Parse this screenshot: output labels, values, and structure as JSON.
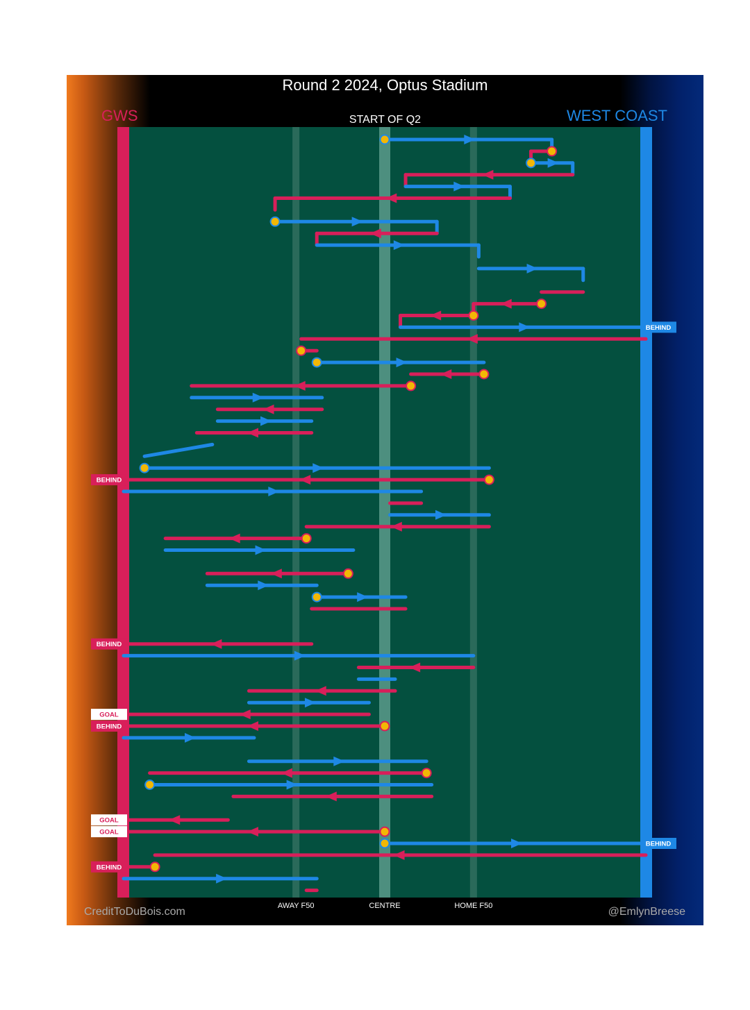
{
  "header": {
    "title": "Round 2 2024, Optus Stadium",
    "home_team": "GWS",
    "away_team": "WEST COAST",
    "period_label": "START OF Q2"
  },
  "footer": {
    "credit_left": "CreditToDuBois.com",
    "credit_right": "@EmlynBreese"
  },
  "colors": {
    "home": "#d81f5a",
    "away": "#1e88e5",
    "field": "#04503f",
    "stoppage": "#f2b705"
  },
  "chart_data": {
    "type": "line",
    "description_units": "x = field position from GWS goal (0) to West Coast goal (100); y = chain sequence index",
    "x_ticks": [
      {
        "value": 33,
        "label": "AWAY F50"
      },
      {
        "value": 50,
        "label": "CENTRE"
      },
      {
        "value": 67,
        "label": "HOME F50"
      }
    ],
    "xlim": [
      0,
      100
    ],
    "segments": [
      {
        "team": "away",
        "x0": 50,
        "x1": 82,
        "y0": 0,
        "y1": 0,
        "start": "stoppage",
        "arrow": true
      },
      {
        "team": "away",
        "x0": 82,
        "x1": 82,
        "y0": 0,
        "y1": 1
      },
      {
        "team": "home",
        "x0": 82,
        "x1": 78,
        "y0": 1,
        "y1": 1,
        "start": "stoppage",
        "arrow": false
      },
      {
        "team": "home",
        "x0": 78,
        "x1": 78,
        "y0": 1,
        "y1": 2
      },
      {
        "team": "away",
        "x0": 78,
        "x1": 86,
        "y0": 2,
        "y1": 2,
        "start": "stoppage",
        "arrow": true
      },
      {
        "team": "away",
        "x0": 86,
        "x1": 86,
        "y0": 2,
        "y1": 3
      },
      {
        "team": "home",
        "x0": 86,
        "x1": 54,
        "y0": 3,
        "y1": 3,
        "arrow": true
      },
      {
        "team": "home",
        "x0": 54,
        "x1": 54,
        "y0": 3,
        "y1": 4
      },
      {
        "team": "away",
        "x0": 54,
        "x1": 74,
        "y0": 4,
        "y1": 4,
        "arrow": true
      },
      {
        "team": "away",
        "x0": 74,
        "x1": 74,
        "y0": 4,
        "y1": 5
      },
      {
        "team": "home",
        "x0": 74,
        "x1": 29,
        "y0": 5,
        "y1": 5,
        "arrow": true
      },
      {
        "team": "home",
        "x0": 29,
        "x1": 29,
        "y0": 5,
        "y1": 6
      },
      {
        "team": "away",
        "x0": 29,
        "x1": 60,
        "y0": 7,
        "y1": 7,
        "start": "stoppage",
        "arrow": true
      },
      {
        "team": "away",
        "x0": 60,
        "x1": 60,
        "y0": 7,
        "y1": 8
      },
      {
        "team": "home",
        "x0": 60,
        "x1": 37,
        "y0": 8,
        "y1": 8,
        "arrow": true
      },
      {
        "team": "home",
        "x0": 37,
        "x1": 37,
        "y0": 8,
        "y1": 9
      },
      {
        "team": "away",
        "x0": 37,
        "x1": 68,
        "y0": 9,
        "y1": 9,
        "arrow": true
      },
      {
        "team": "away",
        "x0": 68,
        "x1": 68,
        "y0": 9,
        "y1": 10
      },
      {
        "team": "away",
        "x0": 68,
        "x1": 88,
        "y0": 11,
        "y1": 11,
        "arrow": true
      },
      {
        "team": "away",
        "x0": 88,
        "x1": 88,
        "y0": 11,
        "y1": 12
      },
      {
        "team": "home",
        "x0": 88,
        "x1": 80,
        "y0": 13,
        "y1": 13
      },
      {
        "team": "home",
        "x0": 80,
        "x1": 67,
        "y0": 14,
        "y1": 14,
        "start": "stoppage",
        "arrow": true
      },
      {
        "team": "home",
        "x0": 67,
        "x1": 67,
        "y0": 14,
        "y1": 15
      },
      {
        "team": "home",
        "x0": 67,
        "x1": 53,
        "y0": 15,
        "y1": 15,
        "start": "stoppage",
        "arrow": true
      },
      {
        "team": "home",
        "x0": 53,
        "x1": 53,
        "y0": 15,
        "y1": 16
      },
      {
        "team": "away",
        "x0": 53,
        "x1": 100,
        "y0": 16,
        "y1": 16,
        "arrow": true,
        "outcome": "BEHIND"
      },
      {
        "team": "home",
        "x0": 100,
        "x1": 34,
        "y0": 17,
        "y1": 17,
        "arrow": true
      },
      {
        "team": "home",
        "x0": 34,
        "x1": 37,
        "y0": 18,
        "y1": 18,
        "start": "stoppage"
      },
      {
        "team": "away",
        "x0": 37,
        "x1": 69,
        "y0": 19,
        "y1": 19,
        "start": "stoppage",
        "arrow": true
      },
      {
        "team": "home",
        "x0": 69,
        "x1": 55,
        "y0": 20,
        "y1": 20,
        "start": "stoppage",
        "arrow": true
      },
      {
        "team": "home",
        "x0": 55,
        "x1": 13,
        "y0": 21,
        "y1": 21,
        "start": "stoppage",
        "arrow": true
      },
      {
        "team": "away",
        "x0": 13,
        "x1": 38,
        "y0": 22,
        "y1": 22,
        "arrow": true
      },
      {
        "team": "home",
        "x0": 38,
        "x1": 18,
        "y0": 23,
        "y1": 23,
        "arrow": true
      },
      {
        "team": "away",
        "x0": 18,
        "x1": 36,
        "y0": 24,
        "y1": 24,
        "arrow": true
      },
      {
        "team": "home",
        "x0": 36,
        "x1": 14,
        "y0": 25,
        "y1": 25,
        "arrow": true
      },
      {
        "team": "away",
        "x0": 17,
        "x1": 4,
        "y0": 26,
        "y1": 27,
        "arrow": true
      },
      {
        "team": "away",
        "x0": 4,
        "x1": 70,
        "y0": 28,
        "y1": 28,
        "start": "stoppage",
        "arrow": true
      },
      {
        "team": "home",
        "x0": 70,
        "x1": 0,
        "y0": 29,
        "y1": 29,
        "start": "stoppage",
        "arrow": true,
        "outcome": "BEHIND"
      },
      {
        "team": "away",
        "x0": 0,
        "x1": 57,
        "y0": 30,
        "y1": 30,
        "arrow": true
      },
      {
        "team": "home",
        "x0": 57,
        "x1": 51,
        "y0": 31,
        "y1": 31
      },
      {
        "team": "away",
        "x0": 51,
        "x1": 70,
        "y0": 32,
        "y1": 32,
        "arrow": true
      },
      {
        "team": "home",
        "x0": 70,
        "x1": 35,
        "y0": 33,
        "y1": 33,
        "arrow": true
      },
      {
        "team": "home",
        "x0": 35,
        "x1": 8,
        "y0": 34,
        "y1": 34,
        "start": "stoppage",
        "arrow": true
      },
      {
        "team": "away",
        "x0": 8,
        "x1": 44,
        "y0": 35,
        "y1": 35,
        "arrow": true
      },
      {
        "team": "home",
        "x0": 43,
        "x1": 16,
        "y0": 37,
        "y1": 37,
        "start": "stoppage",
        "arrow": true
      },
      {
        "team": "away",
        "x0": 16,
        "x1": 37,
        "y0": 38,
        "y1": 38,
        "arrow": true
      },
      {
        "team": "away",
        "x0": 37,
        "x1": 54,
        "y0": 39,
        "y1": 39,
        "start": "stoppage",
        "arrow": true
      },
      {
        "team": "home",
        "x0": 54,
        "x1": 36,
        "y0": 40,
        "y1": 40
      },
      {
        "team": "home",
        "x0": 36,
        "x1": 0,
        "y0": 43,
        "y1": 43,
        "arrow": true,
        "outcome": "BEHIND"
      },
      {
        "team": "away",
        "x0": 0,
        "x1": 67,
        "y0": 44,
        "y1": 44,
        "arrow": true
      },
      {
        "team": "home",
        "x0": 67,
        "x1": 45,
        "y0": 45,
        "y1": 45,
        "arrow": true
      },
      {
        "team": "away",
        "x0": 45,
        "x1": 52,
        "y0": 46,
        "y1": 46
      },
      {
        "team": "home",
        "x0": 52,
        "x1": 24,
        "y0": 47,
        "y1": 47,
        "arrow": true
      },
      {
        "team": "away",
        "x0": 24,
        "x1": 47,
        "y0": 48,
        "y1": 48,
        "arrow": true
      },
      {
        "team": "home",
        "x0": 47,
        "x1": 0,
        "y0": 49,
        "y1": 49,
        "arrow": true,
        "outcome": "GOAL"
      },
      {
        "team": "home",
        "x0": 50,
        "x1": 0,
        "y0": 50,
        "y1": 50,
        "start": "stoppage",
        "arrow": true,
        "outcome": "BEHIND"
      },
      {
        "team": "away",
        "x0": 0,
        "x1": 25,
        "y0": 51,
        "y1": 51,
        "arrow": true
      },
      {
        "team": "away",
        "x0": 24,
        "x1": 58,
        "y0": 53,
        "y1": 53,
        "arrow": true
      },
      {
        "team": "home",
        "x0": 58,
        "x1": 5,
        "y0": 54,
        "y1": 54,
        "start": "stoppage",
        "arrow": true
      },
      {
        "team": "away",
        "x0": 5,
        "x1": 59,
        "y0": 55,
        "y1": 55,
        "start": "stoppage",
        "arrow": true
      },
      {
        "team": "home",
        "x0": 59,
        "x1": 21,
        "y0": 56,
        "y1": 56,
        "arrow": true
      },
      {
        "team": "home",
        "x0": 20,
        "x1": 0,
        "y0": 58,
        "y1": 58,
        "arrow": true,
        "outcome": "GOAL"
      },
      {
        "team": "home",
        "x0": 50,
        "x1": 0,
        "y0": 59,
        "y1": 59,
        "start": "stoppage",
        "arrow": true,
        "outcome": "GOAL"
      },
      {
        "team": "away",
        "x0": 50,
        "x1": 100,
        "y0": 60,
        "y1": 60,
        "start": "stoppage",
        "arrow": true,
        "outcome": "BEHIND"
      },
      {
        "team": "home",
        "x0": 100,
        "x1": 6,
        "y0": 61,
        "y1": 61,
        "arrow": true
      },
      {
        "team": "home",
        "x0": 6,
        "x1": 0,
        "y0": 62,
        "y1": 62,
        "start": "stoppage",
        "arrow": false,
        "outcome": "BEHIND"
      },
      {
        "team": "away",
        "x0": 0,
        "x1": 37,
        "y0": 63,
        "y1": 63,
        "arrow": true
      },
      {
        "team": "home",
        "x0": 37,
        "x1": 35,
        "y0": 64,
        "y1": 64
      }
    ]
  }
}
